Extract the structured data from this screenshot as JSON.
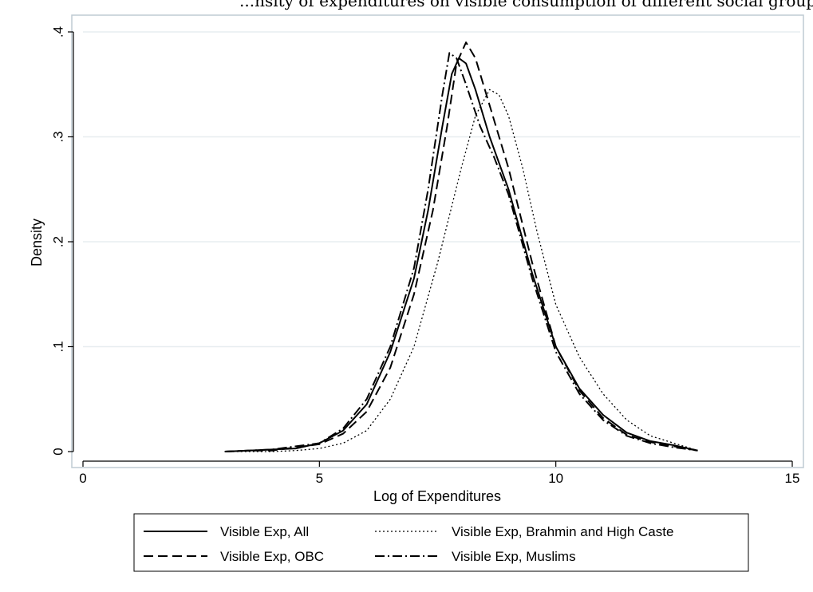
{
  "caption_fragment": "...nsity of expenditures on visible consumption of different social groups...",
  "chart_data": {
    "type": "line",
    "title": "",
    "xlabel": "Log of Expenditures",
    "ylabel": "Density",
    "xlim": [
      0,
      15
    ],
    "ylim": [
      0,
      0.4
    ],
    "xticks": [
      0,
      5,
      10,
      15
    ],
    "xtick_labels": [
      "0",
      "5",
      "10",
      "15"
    ],
    "yticks": [
      0,
      0.1,
      0.2,
      0.3,
      0.4
    ],
    "ytick_labels": [
      "0",
      ".1",
      ".2",
      ".3",
      ".4"
    ],
    "grid": true,
    "legend_position": "bottom",
    "series": [
      {
        "name": "Visible Exp, All",
        "style": "solid",
        "x": [
          3.0,
          3.5,
          4.0,
          4.5,
          5.0,
          5.5,
          6.0,
          6.5,
          7.0,
          7.3,
          7.6,
          7.8,
          7.95,
          8.1,
          8.3,
          8.6,
          9.0,
          9.5,
          10.0,
          10.5,
          11.0,
          11.5,
          12.0,
          12.5,
          13.0
        ],
        "y": [
          0.0,
          0.001,
          0.002,
          0.003,
          0.008,
          0.02,
          0.045,
          0.095,
          0.165,
          0.23,
          0.31,
          0.36,
          0.375,
          0.37,
          0.345,
          0.3,
          0.25,
          0.17,
          0.1,
          0.06,
          0.035,
          0.018,
          0.01,
          0.006,
          0.001
        ]
      },
      {
        "name": "Visible Exp, Brahmin and High Caste",
        "style": "dotted",
        "x": [
          3.0,
          4.0,
          4.5,
          5.0,
          5.5,
          6.0,
          6.5,
          7.0,
          7.5,
          8.0,
          8.3,
          8.6,
          8.8,
          9.0,
          9.3,
          9.6,
          10.0,
          10.5,
          11.0,
          11.5,
          12.0,
          12.5,
          13.0
        ],
        "y": [
          0.0,
          0.0,
          0.001,
          0.003,
          0.008,
          0.02,
          0.05,
          0.1,
          0.18,
          0.27,
          0.32,
          0.345,
          0.34,
          0.32,
          0.27,
          0.21,
          0.14,
          0.09,
          0.055,
          0.03,
          0.015,
          0.008,
          0.001
        ]
      },
      {
        "name": "Visible Exp, OBC",
        "style": "dashed",
        "x": [
          3.0,
          3.5,
          4.0,
          4.5,
          5.0,
          5.5,
          6.0,
          6.5,
          7.0,
          7.4,
          7.7,
          7.9,
          8.1,
          8.3,
          8.6,
          9.0,
          9.5,
          10.0,
          10.5,
          11.0,
          11.5,
          12.0,
          12.5,
          13.0
        ],
        "y": [
          0.0,
          0.001,
          0.001,
          0.004,
          0.007,
          0.017,
          0.038,
          0.08,
          0.15,
          0.23,
          0.31,
          0.37,
          0.39,
          0.375,
          0.33,
          0.27,
          0.18,
          0.1,
          0.058,
          0.032,
          0.016,
          0.009,
          0.005,
          0.001
        ]
      },
      {
        "name": "Visible Exp, Muslims",
        "style": "dashdot",
        "x": [
          3.0,
          3.5,
          4.0,
          4.5,
          5.0,
          5.5,
          6.0,
          6.5,
          7.0,
          7.3,
          7.6,
          7.75,
          7.9,
          8.1,
          8.4,
          8.7,
          9.0,
          9.5,
          10.0,
          10.5,
          11.0,
          11.5,
          12.0,
          12.5,
          13.0
        ],
        "y": [
          0.0,
          0.001,
          0.002,
          0.005,
          0.008,
          0.022,
          0.05,
          0.1,
          0.175,
          0.25,
          0.34,
          0.38,
          0.375,
          0.35,
          0.31,
          0.28,
          0.245,
          0.165,
          0.095,
          0.055,
          0.03,
          0.015,
          0.008,
          0.004,
          0.001
        ]
      }
    ]
  },
  "colors": {
    "plot_border": "#bfcbd3",
    "grid": "#e7edf0",
    "line": "#000000"
  }
}
